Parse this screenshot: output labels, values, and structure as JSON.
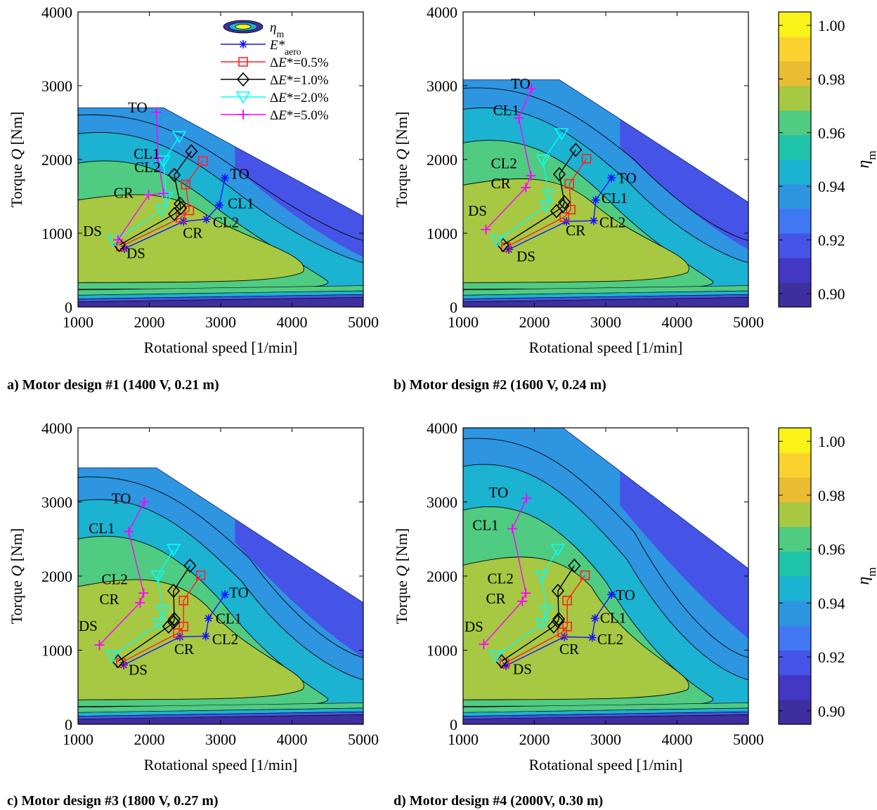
{
  "colors": {
    "colorbar": [
      "#3e2f9e",
      "#4238c4",
      "#4554e6",
      "#3f78f2",
      "#2e95e0",
      "#1cb2d2",
      "#1ec3aa",
      "#50cb82",
      "#a6c843",
      "#eabc32",
      "#f9d22f",
      "#f9f318"
    ],
    "zones": [
      "#2e95e0",
      "#1cb2d2",
      "#50cb82",
      "#a6c843"
    ],
    "lowband": [
      "#3e2f9e",
      "#4554e6",
      "#1cb2d2",
      "#50cb82"
    ],
    "series": [
      "#1414ff",
      "#ff2020",
      "#000000",
      "#00ffff",
      "#ff00ff"
    ]
  },
  "legend": [
    {
      "label": "η_m",
      "marker": "contour-ellipse-icon"
    },
    {
      "label": "E*_aero",
      "marker": "asterisk"
    },
    {
      "label": "ΔE*=0.5%",
      "marker": "square"
    },
    {
      "label": "ΔE*=1.0%",
      "marker": "diamond"
    },
    {
      "label": "ΔE*=2.0%",
      "marker": "triangle-down"
    },
    {
      "label": "ΔE*=5.0%",
      "marker": "plus"
    }
  ],
  "colorbar": {
    "label": "η_m",
    "range": [
      0.895,
      1.005
    ],
    "ticks": [
      "0.90",
      "0.92",
      "0.94",
      "0.96",
      "0.98",
      "1.00"
    ],
    "tick_values": [
      0.9,
      0.92,
      0.94,
      0.96,
      0.98,
      1.0
    ]
  },
  "chart_data": [
    {
      "type": "line",
      "caption": "a) Motor design #1 (1400 V, 0.21 m)",
      "xlabel": "Rotational speed [1/min]",
      "ylabel": "Torque Q [Nm]",
      "xlim": [
        1000,
        5000
      ],
      "ylim": [
        0,
        4000
      ],
      "xticks": [
        1000,
        2000,
        3000,
        4000,
        5000
      ],
      "yticks": [
        0,
        1000,
        2000,
        3000,
        4000
      ],
      "grid": false,
      "envelope": {
        "max_torque": 2700,
        "corner_speed": 2200,
        "torque_at_5000": 1230
      },
      "series": [
        {
          "name": "E*_aero",
          "points": [
            [
              1650,
              790
            ],
            [
              2480,
              1160
            ],
            [
              2800,
              1190
            ],
            [
              2980,
              1380
            ],
            [
              3060,
              1750
            ]
          ]
        },
        {
          "name": "ΔE*=0.5%",
          "points": [
            [
              1600,
              820
            ],
            [
              2440,
              1210
            ],
            [
              2560,
              1310
            ],
            [
              2510,
              1660
            ],
            [
              2750,
              1980
            ]
          ]
        },
        {
          "name": "ΔE*=1.0%",
          "points": [
            [
              1580,
              840
            ],
            [
              2350,
              1260
            ],
            [
              2440,
              1340
            ],
            [
              2430,
              1400
            ],
            [
              2350,
              1790
            ],
            [
              2590,
              2110
            ]
          ]
        },
        {
          "name": "ΔE*=2.0%",
          "points": [
            [
              1500,
              900
            ],
            [
              2180,
              1310
            ],
            [
              2240,
              1480
            ],
            [
              2200,
              1980
            ],
            [
              2420,
              2310
            ]
          ]
        },
        {
          "name": "ΔE*=5.0%",
          "points": [
            [
              1560,
              910
            ],
            [
              1990,
              1520
            ],
            [
              2200,
              1540
            ],
            [
              2120,
              2020
            ],
            [
              2100,
              2640
            ]
          ]
        }
      ],
      "annotations": [
        {
          "text": "TO",
          "x": 3130,
          "y": 1740
        },
        {
          "text": "CL1",
          "x": 3100,
          "y": 1340
        },
        {
          "text": "CL2",
          "x": 2890,
          "y": 1080
        },
        {
          "text": "CR",
          "x": 2470,
          "y": 940
        },
        {
          "text": "DS",
          "x": 1680,
          "y": 660
        },
        {
          "text": "DS",
          "x": 1070,
          "y": 960
        },
        {
          "text": "CR",
          "x": 1500,
          "y": 1480
        },
        {
          "text": "CL2",
          "x": 1790,
          "y": 1830
        },
        {
          "text": "CL1",
          "x": 1780,
          "y": 2010
        },
        {
          "text": "TO",
          "x": 1700,
          "y": 2640
        }
      ]
    },
    {
      "type": "line",
      "caption": "b) Motor design #2  (1600 V, 0.24 m)",
      "xlabel": "Rotational speed [1/min]",
      "ylabel": "Torque Q [Nm]",
      "xlim": [
        1000,
        5000
      ],
      "ylim": [
        0,
        4000
      ],
      "xticks": [
        1000,
        2000,
        3000,
        4000,
        5000
      ],
      "yticks": [
        0,
        1000,
        2000,
        3000,
        4000
      ],
      "grid": false,
      "envelope": {
        "max_torque": 3080,
        "corner_speed": 2350,
        "torque_at_5000": 1420
      },
      "series": [
        {
          "name": "E*_aero",
          "points": [
            [
              1640,
              780
            ],
            [
              2450,
              1160
            ],
            [
              2830,
              1170
            ],
            [
              2860,
              1450
            ],
            [
              3080,
              1750
            ]
          ]
        },
        {
          "name": "ΔE*=0.5%",
          "points": [
            [
              1600,
              810
            ],
            [
              2420,
              1220
            ],
            [
              2510,
              1320
            ],
            [
              2490,
              1670
            ],
            [
              2730,
              2010
            ]
          ]
        },
        {
          "name": "ΔE*=1.0%",
          "points": [
            [
              1560,
              840
            ],
            [
              2310,
              1300
            ],
            [
              2400,
              1370
            ],
            [
              2420,
              1420
            ],
            [
              2350,
              1800
            ],
            [
              2580,
              2130
            ]
          ]
        },
        {
          "name": "ΔE*=2.0%",
          "points": [
            [
              1480,
              900
            ],
            [
              2160,
              1370
            ],
            [
              2200,
              1520
            ],
            [
              2120,
              1990
            ],
            [
              2380,
              2350
            ]
          ]
        },
        {
          "name": "ΔE*=5.0%",
          "points": [
            [
              1320,
              1050
            ],
            [
              1880,
              1620
            ],
            [
              1950,
              1780
            ],
            [
              1780,
              2560
            ],
            [
              1960,
              2960
            ]
          ]
        }
      ],
      "annotations": [
        {
          "text": "TO",
          "x": 3160,
          "y": 1680
        },
        {
          "text": "CL1",
          "x": 2940,
          "y": 1410
        },
        {
          "text": "CL2",
          "x": 2910,
          "y": 1080
        },
        {
          "text": "CR",
          "x": 2440,
          "y": 970
        },
        {
          "text": "DS",
          "x": 1750,
          "y": 620
        },
        {
          "text": "DS",
          "x": 1070,
          "y": 1240
        },
        {
          "text": "CR",
          "x": 1390,
          "y": 1610
        },
        {
          "text": "CL2",
          "x": 1390,
          "y": 1880
        },
        {
          "text": "CL1",
          "x": 1420,
          "y": 2600
        },
        {
          "text": "TO",
          "x": 1670,
          "y": 2960
        }
      ]
    },
    {
      "type": "line",
      "caption": "c) Motor design #3 (1800 V, 0.27 m)",
      "xlabel": "Rotational speed [1/min]",
      "ylabel": "Torque Q [Nm]",
      "xlim": [
        1000,
        5000
      ],
      "ylim": [
        0,
        4000
      ],
      "xticks": [
        1000,
        2000,
        3000,
        4000,
        5000
      ],
      "yticks": [
        0,
        1000,
        2000,
        3000,
        4000
      ],
      "grid": false,
      "envelope": {
        "max_torque": 3460,
        "corner_speed": 2100,
        "torque_at_5000": 1640
      },
      "series": [
        {
          "name": "E*_aero",
          "points": [
            [
              1640,
              800
            ],
            [
              2430,
              1180
            ],
            [
              2790,
              1190
            ],
            [
              2830,
              1430
            ],
            [
              3060,
              1750
            ]
          ]
        },
        {
          "name": "ΔE*=0.5%",
          "points": [
            [
              1600,
              830
            ],
            [
              2400,
              1230
            ],
            [
              2480,
              1320
            ],
            [
              2480,
              1670
            ],
            [
              2720,
              2010
            ]
          ]
        },
        {
          "name": "ΔE*=1.0%",
          "points": [
            [
              1560,
              850
            ],
            [
              2270,
              1320
            ],
            [
              2340,
              1380
            ],
            [
              2350,
              1420
            ],
            [
              2340,
              1800
            ],
            [
              2570,
              2140
            ]
          ]
        },
        {
          "name": "ΔE*=2.0%",
          "points": [
            [
              1480,
              920
            ],
            [
              2140,
              1360
            ],
            [
              2190,
              1530
            ],
            [
              2120,
              2000
            ],
            [
              2340,
              2360
            ]
          ]
        },
        {
          "name": "ΔE*=5.0%",
          "points": [
            [
              1300,
              1070
            ],
            [
              1870,
              1640
            ],
            [
              1920,
              1770
            ],
            [
              1710,
              2600
            ],
            [
              1930,
              3000
            ]
          ]
        }
      ],
      "annotations": [
        {
          "text": "TO",
          "x": 3120,
          "y": 1710
        },
        {
          "text": "CL1",
          "x": 2930,
          "y": 1360
        },
        {
          "text": "CL2",
          "x": 2880,
          "y": 1080
        },
        {
          "text": "CR",
          "x": 2350,
          "y": 950
        },
        {
          "text": "DS",
          "x": 1710,
          "y": 670
        },
        {
          "text": "DS",
          "x": 1010,
          "y": 1260
        },
        {
          "text": "CR",
          "x": 1300,
          "y": 1620
        },
        {
          "text": "CL2",
          "x": 1330,
          "y": 1890
        },
        {
          "text": "CL1",
          "x": 1150,
          "y": 2580
        },
        {
          "text": "TO",
          "x": 1470,
          "y": 2980
        }
      ]
    },
    {
      "type": "line",
      "caption": "d) Motor design #4 (2000V, 0.30 m)",
      "xlabel": "Rotational speed [1/min]",
      "ylabel": "Torque Q [Nm]",
      "xlim": [
        1000,
        5000
      ],
      "ylim": [
        0,
        4000
      ],
      "xticks": [
        1000,
        2000,
        3000,
        4000,
        5000
      ],
      "yticks": [
        0,
        1000,
        2000,
        3000,
        4000
      ],
      "grid": false,
      "envelope": {
        "max_torque": 4000,
        "corner_speed": 2400,
        "torque_at_5000": 2100
      },
      "series": [
        {
          "name": "E*_aero",
          "points": [
            [
              1600,
              790
            ],
            [
              2420,
              1180
            ],
            [
              2810,
              1170
            ],
            [
              2850,
              1430
            ],
            [
              3080,
              1750
            ]
          ]
        },
        {
          "name": "ΔE*=0.5%",
          "points": [
            [
              1580,
              820
            ],
            [
              2390,
              1240
            ],
            [
              2460,
              1320
            ],
            [
              2460,
              1670
            ],
            [
              2710,
              2010
            ]
          ]
        },
        {
          "name": "ΔE*=1.0%",
          "points": [
            [
              1540,
              850
            ],
            [
              2270,
              1320
            ],
            [
              2330,
              1390
            ],
            [
              2340,
              1420
            ],
            [
              2330,
              1800
            ],
            [
              2560,
              2140
            ]
          ]
        },
        {
          "name": "ΔE*=2.0%",
          "points": [
            [
              1460,
              920
            ],
            [
              2110,
              1360
            ],
            [
              2170,
              1530
            ],
            [
              2100,
              2000
            ],
            [
              2330,
              2360
            ]
          ]
        },
        {
          "name": "ΔE*=5.0%",
          "points": [
            [
              1290,
              1080
            ],
            [
              1830,
              1660
            ],
            [
              1880,
              1770
            ],
            [
              1690,
              2640
            ],
            [
              1890,
              3050
            ]
          ]
        }
      ],
      "annotations": [
        {
          "text": "TO",
          "x": 3140,
          "y": 1680
        },
        {
          "text": "CL1",
          "x": 2920,
          "y": 1370
        },
        {
          "text": "CL2",
          "x": 2880,
          "y": 1080
        },
        {
          "text": "CR",
          "x": 2350,
          "y": 950
        },
        {
          "text": "DS",
          "x": 1700,
          "y": 680
        },
        {
          "text": "DS",
          "x": 1020,
          "y": 1250
        },
        {
          "text": "CR",
          "x": 1320,
          "y": 1630
        },
        {
          "text": "CL2",
          "x": 1340,
          "y": 1900
        },
        {
          "text": "CL1",
          "x": 1130,
          "y": 2620
        },
        {
          "text": "TO",
          "x": 1360,
          "y": 3060
        }
      ]
    }
  ]
}
